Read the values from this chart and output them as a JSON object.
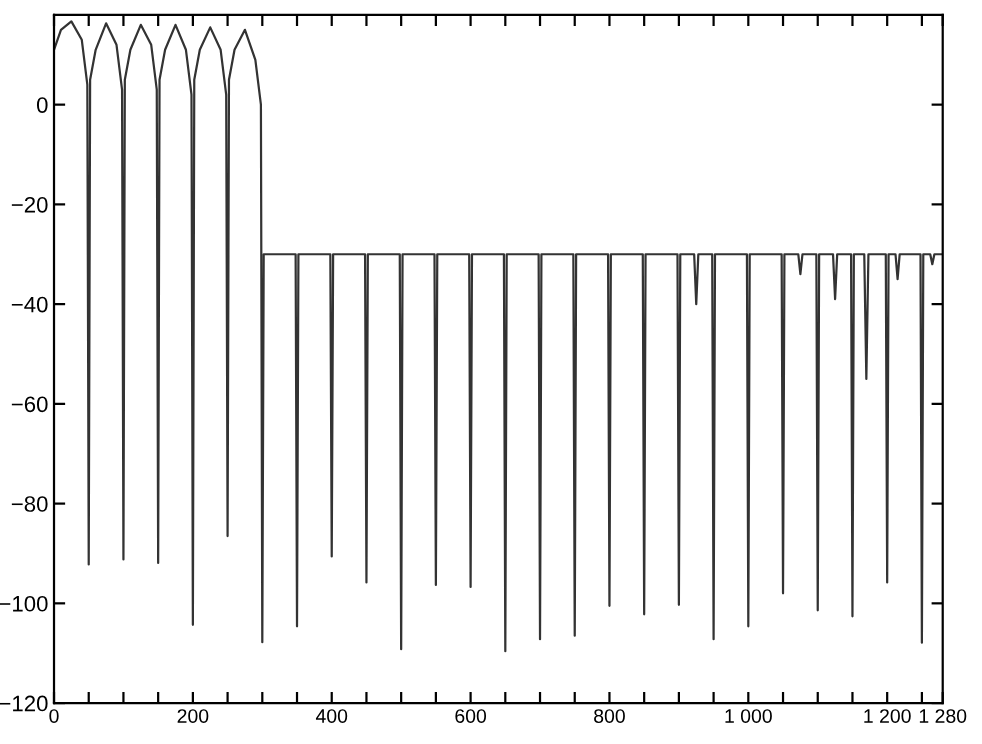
{
  "chart_data": {
    "type": "line",
    "series": [
      {
        "color": "#333333",
        "x": [
          0,
          10,
          25,
          40,
          48,
          50,
          52,
          60,
          75,
          90,
          98,
          100,
          102,
          110,
          125,
          140,
          148,
          150,
          152,
          160,
          175,
          190,
          198,
          200,
          202,
          210,
          225,
          240,
          248,
          250,
          252,
          260,
          275,
          290,
          298,
          300,
          302,
          348,
          350,
          352,
          398,
          400,
          402,
          448,
          450,
          452,
          498,
          500,
          502,
          548,
          550,
          552,
          598,
          600,
          602,
          648,
          650,
          652,
          698,
          700,
          702,
          748,
          750,
          752,
          798,
          800,
          802,
          848,
          850,
          852,
          898,
          900,
          902,
          922,
          925,
          928,
          948,
          950,
          952,
          998,
          1000,
          1002,
          1048,
          1050,
          1052,
          1072,
          1075,
          1078,
          1098,
          1100,
          1102,
          1122,
          1125,
          1128,
          1148,
          1150,
          1152,
          1167,
          1170,
          1173,
          1198,
          1200,
          1202,
          1212,
          1215,
          1218,
          1248,
          1250,
          1252,
          1262,
          1265,
          1268,
          1280
        ],
        "values": [
          11,
          15,
          16.7,
          13,
          4,
          -92.2,
          5,
          11,
          16.3,
          12,
          3,
          -91.2,
          5,
          11,
          16,
          12,
          3,
          -91.9,
          5,
          11,
          16,
          11,
          2,
          -104.3,
          5,
          11,
          15.5,
          11,
          2,
          -86.5,
          5,
          11,
          15,
          9,
          0,
          -107.8,
          -30,
          -30,
          -104.6,
          -30,
          -30,
          -90.6,
          -30,
          -30,
          -95.8,
          -30,
          -30,
          -109.2,
          -30,
          -30,
          -96.3,
          -30,
          -30,
          -96.7,
          -30,
          -30,
          -109.6,
          -30,
          -30,
          -107.2,
          -30,
          -30,
          -106.5,
          -30,
          -30,
          -100.5,
          -30,
          -30,
          -102.2,
          -30,
          -30,
          -100.3,
          -30,
          -30,
          -40,
          -30,
          -30,
          -107.2,
          -30,
          -30,
          -104.6,
          -30,
          -30,
          -98,
          -30,
          -30,
          -34,
          -30,
          -30,
          -101.4,
          -30,
          -30,
          -39,
          -30,
          -30,
          -102.6,
          -30,
          -30,
          -55,
          -30,
          -30,
          -95.8,
          -30,
          -30,
          -35,
          -30,
          -30,
          -107.9,
          -30,
          -30,
          -32,
          -30,
          -30
        ]
      }
    ],
    "xlim": [
      0,
      1280
    ],
    "ylim": [
      -120,
      18
    ],
    "xticks": [
      0,
      {
        "value": 50,
        "label": null
      },
      {
        "value": 100,
        "label": null
      },
      {
        "value": 150,
        "label": null
      },
      200,
      {
        "value": 250,
        "label": null
      },
      {
        "value": 300,
        "label": null
      },
      {
        "value": 350,
        "label": null
      },
      400,
      {
        "value": 450,
        "label": null
      },
      {
        "value": 500,
        "label": null
      },
      {
        "value": 550,
        "label": null
      },
      600,
      {
        "value": 650,
        "label": null
      },
      {
        "value": 700,
        "label": null
      },
      {
        "value": 750,
        "label": null
      },
      800,
      {
        "value": 850,
        "label": null
      },
      {
        "value": 900,
        "label": null
      },
      {
        "value": 950,
        "label": null
      },
      {
        "value": 1000,
        "label": "1 000"
      },
      {
        "value": 1050,
        "label": null
      },
      {
        "value": 1100,
        "label": null
      },
      {
        "value": 1150,
        "label": null
      },
      {
        "value": 1200,
        "label": "1 200"
      },
      {
        "value": 1250,
        "label": null
      },
      {
        "value": 1280,
        "label": "1 280"
      }
    ],
    "yticks": [
      -120,
      -100,
      -80,
      -60,
      -40,
      -20,
      0
    ],
    "grid": false
  }
}
